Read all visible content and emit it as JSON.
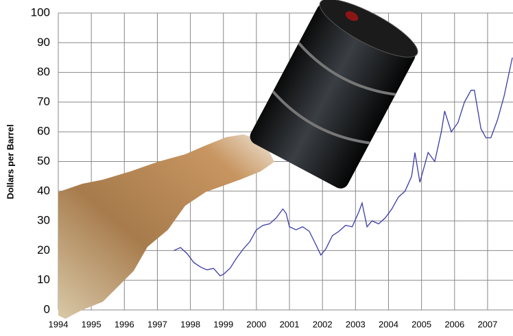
{
  "chart_data": {
    "type": "line",
    "y_label": "Dollars per Barrel",
    "x": [
      1997.5,
      1997.7,
      1997.9,
      1998.1,
      1998.3,
      1998.5,
      1998.7,
      1998.9,
      1999.0,
      1999.2,
      1999.4,
      1999.6,
      1999.8,
      2000.0,
      2000.2,
      2000.4,
      2000.6,
      2000.8,
      2000.9,
      2001.0,
      2001.2,
      2001.4,
      2001.6,
      2001.8,
      2001.95,
      2002.1,
      2002.3,
      2002.5,
      2002.7,
      2002.9,
      2003.1,
      2003.2,
      2003.35,
      2003.5,
      2003.7,
      2003.9,
      2004.1,
      2004.3,
      2004.5,
      2004.7,
      2004.8,
      2004.95,
      2005.2,
      2005.4,
      2005.6,
      2005.7,
      2005.9,
      2006.1,
      2006.3,
      2006.5,
      2006.6,
      2006.8,
      2006.95,
      2007.1,
      2007.3,
      2007.5,
      2007.75
    ],
    "series": [
      {
        "color": "#3a3aa8",
        "values": [
          20,
          21,
          19,
          16,
          14.5,
          13.5,
          14,
          11.5,
          12,
          14,
          17.5,
          20.5,
          23,
          27,
          28.5,
          29,
          31,
          34,
          32.5,
          28,
          27,
          28,
          26.5,
          22,
          18.5,
          20.5,
          25,
          26.5,
          28.5,
          28,
          33,
          36,
          28,
          30,
          29,
          31,
          34,
          38,
          40,
          45,
          53,
          43,
          53,
          50,
          60,
          67,
          60,
          63,
          70,
          74,
          74,
          61,
          58,
          58,
          64,
          72,
          85
        ]
      }
    ],
    "xlim": [
      1994,
      2007.77
    ],
    "xticks": [
      1994,
      1995,
      1996,
      1997,
      1998,
      1999,
      2000,
      2001,
      2002,
      2003,
      2004,
      2005,
      2006,
      2007
    ],
    "ylim": [
      0,
      100
    ],
    "yticks": [
      0,
      10,
      20,
      30,
      40,
      50,
      60,
      70,
      80,
      90,
      100
    ],
    "grid": true
  }
}
